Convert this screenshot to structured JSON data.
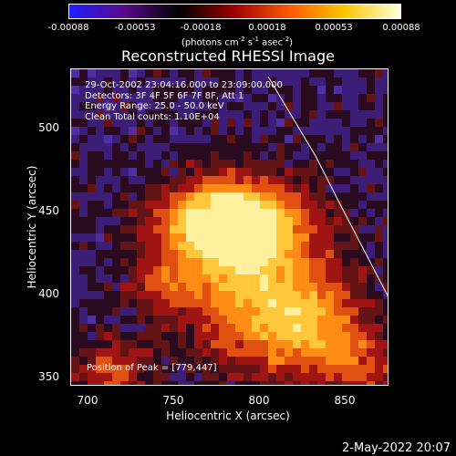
{
  "colorbar": {
    "tick_labels": [
      "-0.00088",
      "-0.00053",
      "-0.00018",
      "0.00018",
      "0.00053",
      "0.00088"
    ],
    "unit_prefix": "(photons cm",
    "unit_exp1": "-2",
    "unit_mid1": " s",
    "unit_exp2": "-1",
    "unit_mid2": " asec",
    "unit_exp3": "-2",
    "unit_suffix": ")",
    "colors": [
      "#1e1eff",
      "#5a0a8a",
      "#000000",
      "#a00000",
      "#ff5a00",
      "#ffc800",
      "#ffffe0"
    ]
  },
  "title": "Reconstructed RHESSI Image",
  "info": {
    "line1": "29-Oct-2002 23:04:16.000 to 23:09:00.000",
    "line2": "Detectors: 3F 4F 5F 6F 7F 8F, Att 1",
    "line3": "Energy Range: 25.0 - 50.0 keV",
    "line4": "Clean     Total counts: 1.10E+04"
  },
  "peak": "Position of Peak = [779,447]",
  "axes": {
    "y_ticks": [
      "500",
      "450",
      "400",
      "350"
    ],
    "x_ticks": [
      "700",
      "750",
      "800",
      "850"
    ],
    "ylabel": "Heliocentric Y (arcsec)",
    "xlabel": "Heliocentric X (arcsec)"
  },
  "timestamp": "2-May-2022 20:07"
}
